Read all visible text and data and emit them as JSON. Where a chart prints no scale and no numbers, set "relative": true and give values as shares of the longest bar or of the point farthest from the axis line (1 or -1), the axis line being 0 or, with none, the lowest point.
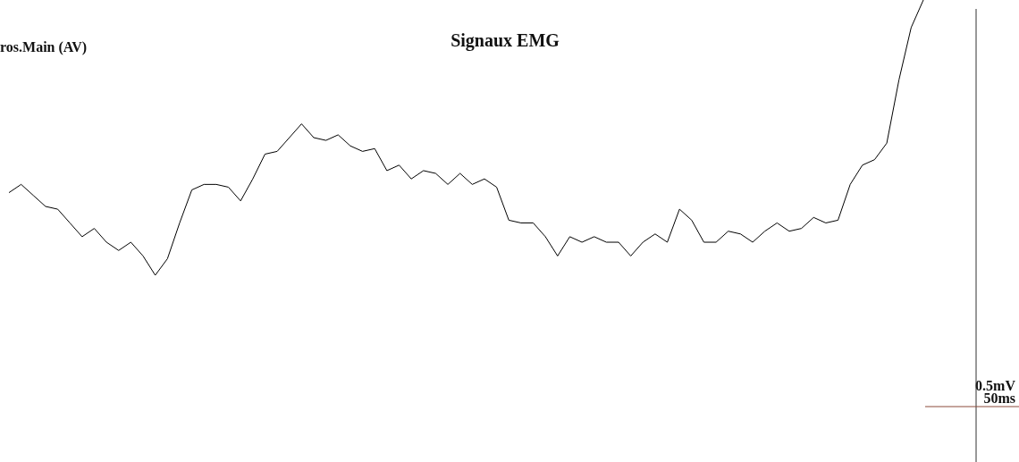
{
  "chart_data": {
    "type": "line",
    "title": "Signaux EMG",
    "relative": true,
    "marker": "none",
    "line_style": "solid",
    "annotations": [
      "ros.Main (AV)",
      "0.5mV",
      "50ms"
    ],
    "categories": [
      null,
      null,
      null,
      null,
      null,
      null,
      null,
      null,
      null,
      null,
      null,
      null,
      null,
      null,
      null,
      null,
      null,
      null,
      null,
      null,
      null,
      null,
      null,
      null,
      null,
      null,
      null,
      null,
      null,
      null,
      null,
      null,
      null,
      null,
      null,
      null,
      null,
      null,
      null,
      null,
      null,
      null,
      null,
      null,
      null,
      null,
      null,
      null,
      null,
      null,
      null,
      null,
      null,
      null,
      null,
      null,
      null,
      null,
      null,
      null,
      null,
      null,
      null,
      null,
      null,
      null,
      null,
      null,
      null,
      null,
      null,
      null,
      null,
      null,
      null,
      null
    ],
    "series": [
      {
        "color": "#000000",
        "values": [
          0.3,
          0.33,
          0.29,
          0.25,
          0.24,
          0.19,
          0.14,
          0.17,
          0.12,
          0.09,
          0.12,
          0.07,
          0,
          0.06,
          0.19,
          0.31,
          0.33,
          0.33,
          0.32,
          0.27,
          0.35,
          0.44,
          0.45,
          0.5,
          0.55,
          0.5,
          0.49,
          0.51,
          0.47,
          0.45,
          0.46,
          0.38,
          0.4,
          0.35,
          0.38,
          0.37,
          0.33,
          0.37,
          0.33,
          0.35,
          0.32,
          0.2,
          0.19,
          0.19,
          0.14,
          0.07,
          0.14,
          0.12,
          0.14,
          0.12,
          0.12,
          0.07,
          0.12,
          0.15,
          0.12,
          0.24,
          0.2,
          0.12,
          0.12,
          0.16,
          0.15,
          0.12,
          0.16,
          0.19,
          0.16,
          0.17,
          0.21,
          0.19,
          0.2,
          0.33,
          0.4,
          0.42,
          0.48,
          0.71,
          0.9,
          1
        ]
      }
    ]
  }
}
